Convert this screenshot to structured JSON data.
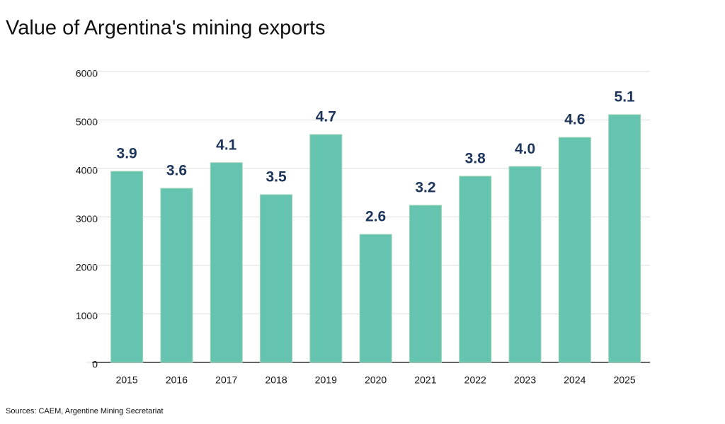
{
  "chart_data": {
    "type": "bar",
    "title": "Value of Argentina's mining exports",
    "categories": [
      "2015",
      "2016",
      "2017",
      "2018",
      "2019",
      "2020",
      "2021",
      "2022",
      "2023",
      "2024",
      "2025"
    ],
    "values": [
      3940,
      3590,
      4120,
      3460,
      4700,
      2640,
      3240,
      3840,
      4040,
      4640,
      5110
    ],
    "value_labels": [
      "3.9",
      "3.6",
      "4.1",
      "3.5",
      "4.7",
      "2.6",
      "3.2",
      "3.8",
      "4.0",
      "4.6",
      "5.1"
    ],
    "color": "#64c4b0",
    "ylim": [
      0,
      6000
    ],
    "yticks": [
      0,
      1000,
      2000,
      3000,
      4000,
      5000,
      6000
    ],
    "grid": true,
    "source": "Sources: CAEM, Argentine Mining Secretariat"
  }
}
